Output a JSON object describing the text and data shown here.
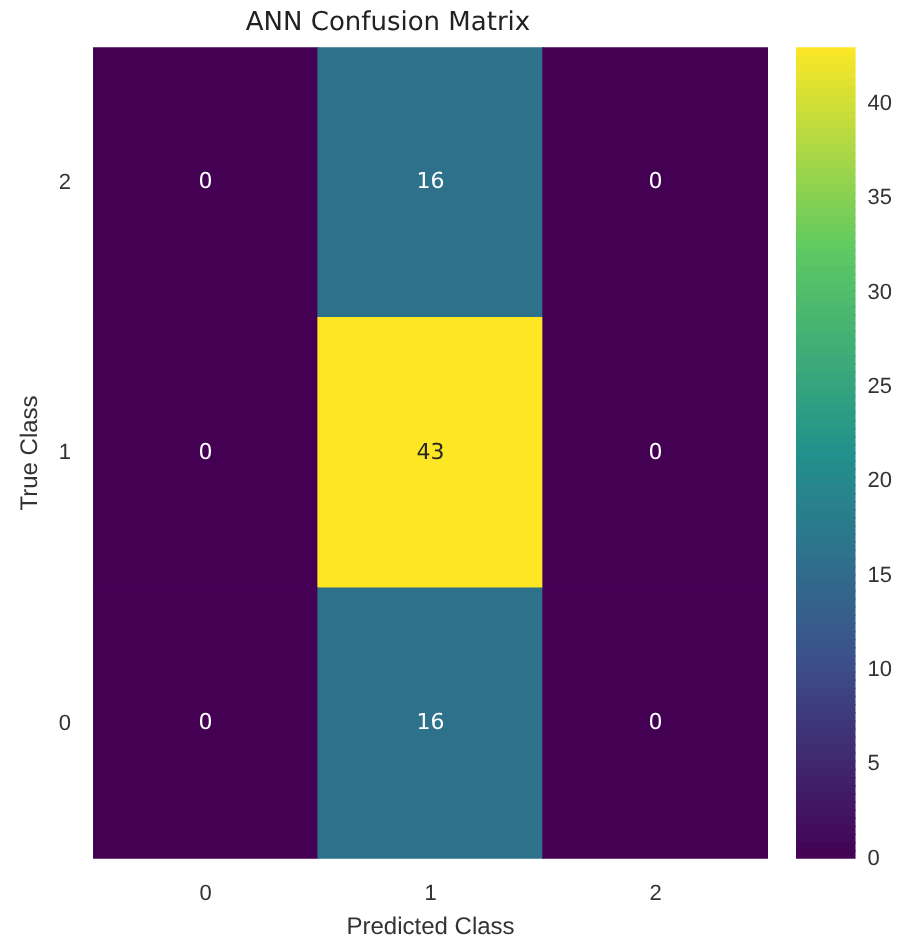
{
  "chart_data": {
    "type": "heatmap",
    "title": "ANN Confusion Matrix",
    "xlabel": "Predicted Class",
    "ylabel": "True Class",
    "categories": [
      "0",
      "1",
      "2"
    ],
    "y_categories": [
      "2",
      "1",
      "0"
    ],
    "cells": [
      [
        0,
        16,
        0
      ],
      [
        0,
        43,
        0
      ],
      [
        0,
        16,
        0
      ]
    ],
    "data_labels": true,
    "clim": [
      0,
      43
    ],
    "cticks": [
      0,
      5,
      10,
      15,
      20,
      25,
      30,
      35,
      40
    ]
  }
}
